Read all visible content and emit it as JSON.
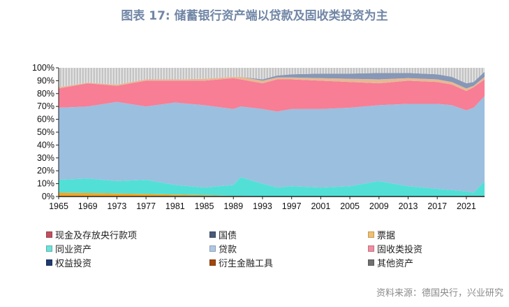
{
  "title": "图表 17: 储蓄银行资产端以贷款及固收类投资为主",
  "source": "资料来源：德国央行，兴业研究",
  "chart_data": {
    "type": "area",
    "stacked": true,
    "title": "图表 17: 储蓄银行资产端以贷款及固收类投资为主",
    "xlabel": "",
    "ylabel": "",
    "ylim": [
      0,
      100
    ],
    "xlim": [
      1965,
      2023
    ],
    "y_ticks": [
      "0%",
      "10%",
      "20%",
      "30%",
      "40%",
      "50%",
      "60%",
      "70%",
      "80%",
      "90%",
      "100%"
    ],
    "x_ticks": [
      "1965",
      "1969",
      "1973",
      "1977",
      "1981",
      "1985",
      "1989",
      "1993",
      "1997",
      "2001",
      "2005",
      "2009",
      "2013",
      "2017",
      "2021"
    ],
    "legend_position": "bottom",
    "x": [
      1965,
      1969,
      1973,
      1977,
      1981,
      1985,
      1989,
      1990,
      1993,
      1995,
      1997,
      2001,
      2005,
      2009,
      2013,
      2017,
      2019,
      2021,
      2022,
      2023
    ],
    "series": [
      {
        "name": "衍生金融工具",
        "color": "#a0522d",
        "values": [
          0,
          0,
          0,
          0,
          0,
          0,
          0,
          0,
          0,
          0,
          0,
          0,
          0,
          0,
          0,
          0,
          0,
          0.5,
          0.5,
          0.5
        ]
      },
      {
        "name": "票据",
        "color": "#f5a623",
        "values": [
          3,
          2.7,
          2.3,
          2,
          1.5,
          1,
          0.5,
          0.5,
          0.3,
          0,
          0,
          0,
          0,
          0,
          0,
          0,
          0,
          0,
          0,
          0
        ]
      },
      {
        "name": "权益投资",
        "color": "#1f3a6e",
        "values": [
          0,
          0,
          0,
          0,
          0,
          0,
          0,
          0,
          0,
          0,
          0,
          0,
          0,
          0,
          0,
          0,
          0,
          0,
          0,
          0
        ]
      },
      {
        "name": "同业资产",
        "color": "#52e0d6",
        "values": [
          10,
          11.3,
          9.7,
          11,
          7.5,
          6,
          8.5,
          14.5,
          9.7,
          7,
          8,
          7,
          8,
          12,
          8,
          6,
          5,
          3.5,
          2.5,
          11.5
        ]
      },
      {
        "name": "贷款",
        "color": "#9bbfdf",
        "values": [
          56,
          56,
          61.5,
          57,
          64,
          64,
          59,
          55,
          58,
          59,
          60,
          61,
          61,
          59,
          64,
          66,
          66,
          63,
          66,
          66
        ]
      },
      {
        "name": "固收类投资",
        "color": "#f77e95",
        "values": [
          15,
          18,
          12.5,
          20,
          17,
          19,
          24,
          21,
          20,
          25,
          23,
          22,
          20,
          17,
          18,
          17,
          16,
          15,
          16,
          13
        ]
      },
      {
        "name": "现金及存放央行款项",
        "color": "#e6b894",
        "values": [
          1,
          0.5,
          1,
          1,
          1,
          1.5,
          1,
          2,
          2,
          1.5,
          1.5,
          2,
          2.5,
          3,
          2,
          2,
          2,
          2,
          1,
          2
        ]
      },
      {
        "name": "国债",
        "color": "#8797b6",
        "values": [
          0,
          0,
          0,
          0,
          0,
          0,
          0,
          0,
          1,
          1.5,
          2.5,
          3.5,
          4,
          5,
          4,
          4,
          4,
          4,
          3,
          4
        ]
      },
      {
        "name": "其他资产",
        "color": "#bdbdbd",
        "values": [
          15,
          11.5,
          13,
          9,
          9,
          8.5,
          7,
          7,
          9,
          6,
          5,
          4.5,
          4.5,
          4,
          4,
          5,
          7,
          12,
          11,
          3
        ]
      }
    ]
  },
  "legend": [
    {
      "label": "现金及存放央行款项",
      "color": "#c0505f"
    },
    {
      "label": "国债",
      "color": "#4a5a78"
    },
    {
      "label": "票据",
      "color": "#f0c070"
    },
    {
      "label": "同业资产",
      "color": "#6fe0da"
    },
    {
      "label": "贷款",
      "color": "#b0c8e2"
    },
    {
      "label": "固收类投资",
      "color": "#f08ea2"
    },
    {
      "label": "权益投资",
      "color": "#1f3a6e"
    },
    {
      "label": "衍生金融工具",
      "color": "#a0480a"
    },
    {
      "label": "其他资产",
      "color": "#707070"
    }
  ]
}
